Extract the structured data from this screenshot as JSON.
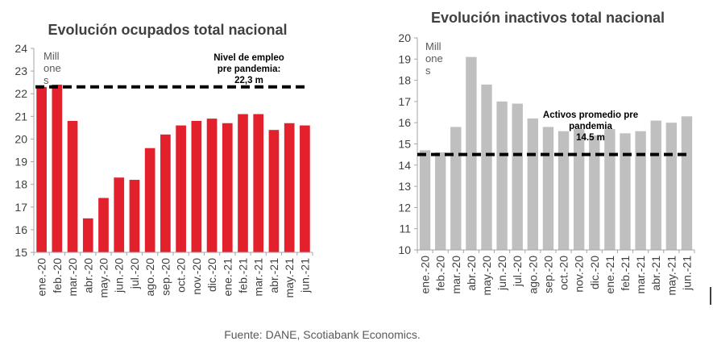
{
  "source": "Fuente: DANE, Scotiabank Economics.",
  "chart_data": [
    {
      "type": "bar",
      "title": "Evolución ocupados total nacional",
      "unit_label": [
        "Mill",
        "one",
        "s"
      ],
      "categories": [
        "ene.-20",
        "feb.-20",
        "mar.-20",
        "abr.-20",
        "may.-20",
        "jun.-20",
        "jul.-20",
        "ago.-20",
        "sep.-20",
        "oct.-20",
        "nov.-20",
        "dic.-20",
        "ene.-21",
        "feb.-21",
        "mar.-21",
        "abr.-21",
        "may.-21",
        "jun.-21"
      ],
      "values": [
        22.3,
        22.4,
        20.8,
        16.5,
        17.4,
        18.3,
        18.2,
        19.6,
        20.2,
        20.6,
        20.8,
        20.9,
        20.7,
        21.1,
        21.1,
        20.4,
        20.7,
        20.6
      ],
      "ylim": [
        15,
        24
      ],
      "yticks": [
        15,
        16,
        17,
        18,
        19,
        20,
        21,
        22,
        23,
        24
      ],
      "bar_color": "#e3212d",
      "reference_line": {
        "value": 22.3,
        "label": [
          "Nivel de empleo",
          "pre pandemia:",
          "22,3 m"
        ]
      }
    },
    {
      "type": "bar",
      "title": "Evolución inactivos total nacional",
      "unit_label": [
        "Mill",
        "one",
        "s"
      ],
      "categories": [
        "ene.-20",
        "feb.-20",
        "mar.-20",
        "abr.-20",
        "may.-20",
        "jun.-20",
        "jul.-20",
        "ago.-20",
        "sep.-20",
        "oct.-20",
        "nov.-20",
        "dic.-20",
        "ene.-21",
        "feb.-21",
        "mar.-21",
        "abr.-21",
        "may.-21",
        "jun.-21"
      ],
      "values": [
        14.7,
        14.6,
        15.8,
        19.1,
        17.8,
        17.0,
        16.9,
        16.2,
        15.8,
        15.6,
        15.7,
        15.4,
        15.7,
        15.5,
        15.6,
        16.1,
        16.0,
        16.3
      ],
      "ylim": [
        10,
        20
      ],
      "yticks": [
        10,
        11,
        12,
        13,
        14,
        15,
        16,
        17,
        18,
        19,
        20
      ],
      "bar_color": "#bfbfbf",
      "reference_line": {
        "value": 14.5,
        "label": [
          "Activos promedio pre",
          "pandemia",
          "14.5 m"
        ]
      }
    }
  ]
}
